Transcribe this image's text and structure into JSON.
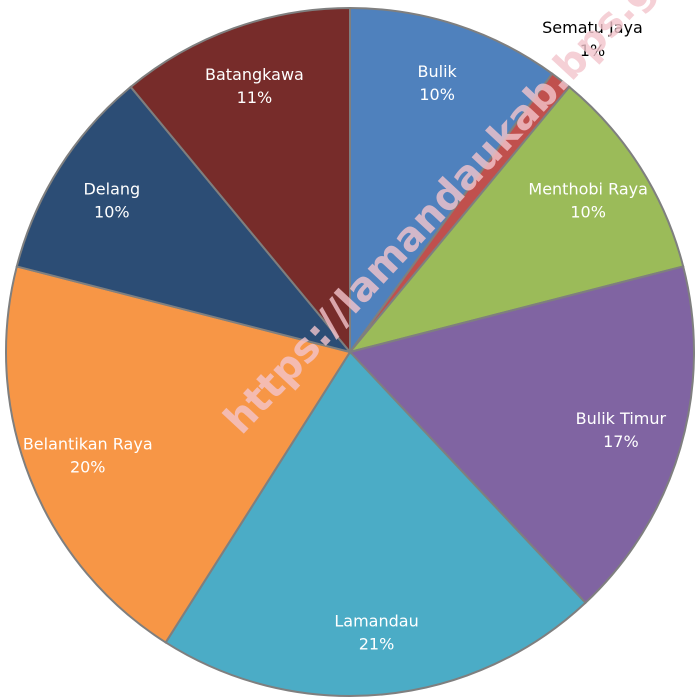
{
  "chart_data": {
    "type": "pie",
    "categories": [
      "Bulik",
      "Sematu Jaya",
      "Menthobi Raya",
      "Bulik Timur",
      "Lamandau",
      "Belantikan Raya",
      "Delang",
      "Batangkawa"
    ],
    "values": [
      10,
      1,
      10,
      17,
      21,
      20,
      10,
      11
    ],
    "value_labels": [
      "10%",
      "1%",
      "10%",
      "17%",
      "21%",
      "20%",
      "10%",
      "11%"
    ],
    "colors": [
      "#4f81bd",
      "#c0504d",
      "#9bbb59",
      "#8064a2",
      "#4bacc6",
      "#f79646",
      "#2c4d75",
      "#772c2a"
    ],
    "watermark": "https://lamandaukab.bps.go.id"
  }
}
